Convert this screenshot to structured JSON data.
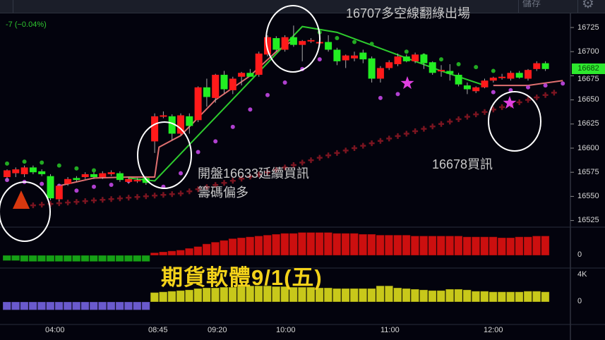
{
  "toolbar": {
    "save_label": "儲存",
    "settings_icon": "gear-icon"
  },
  "header": {
    "change_text": "-7 (−0.04%)"
  },
  "colors": {
    "up": "#ff1a1a",
    "down": "#22ee22",
    "ma": "#e07070",
    "ma_bear": "#2ecc2e",
    "sar_bull": "#b040d0",
    "sar_bear": "#22aa22",
    "cross": "#7a1420",
    "hist_pos": "#cc0f0f",
    "hist_neg": "#16a016",
    "vol_pos": "#c8c81a",
    "vol_neg": "#6a5acd",
    "accent_title": "#f3d21a"
  },
  "price_axis": {
    "ticks": [
      "16725",
      "16700",
      "16675",
      "16650",
      "16625",
      "16600",
      "16575",
      "16550",
      "16525"
    ],
    "last_price": "16682"
  },
  "indicator_axis": {
    "macd_zero": "0",
    "volume_top": "4K",
    "volume_zero": "0"
  },
  "time_axis": [
    "04:00",
    "08:45",
    "09:20",
    "10:00",
    "11:00",
    "12:00"
  ],
  "annotations": {
    "exit_signal": "16707多空線翻綠出場",
    "open_buy_line1": "開盤16633延續買訊",
    "open_buy_line2": "籌碼偏多",
    "buy_signal": "16678買訊",
    "title": "期貨軟體9/1(五)"
  },
  "chart_data": {
    "type": "candlestick",
    "ylim": [
      16520,
      16735
    ],
    "candles": [
      [
        16570,
        16578,
        16566,
        16577
      ],
      [
        16574,
        16580,
        16570,
        16578
      ],
      [
        16573,
        16582,
        16570,
        16580
      ],
      [
        16580,
        16582,
        16573,
        16575
      ],
      [
        16576,
        16578,
        16571,
        16573
      ],
      [
        16571,
        16573,
        16546,
        16548
      ],
      [
        16547,
        16563,
        16545,
        16561
      ],
      [
        16563,
        16570,
        16561,
        16568
      ],
      [
        16569,
        16571,
        16565,
        16567
      ],
      [
        16570,
        16575,
        16568,
        16573
      ],
      [
        16573,
        16575,
        16568,
        16570
      ],
      [
        16570,
        16576,
        16568,
        16574
      ],
      [
        16573,
        16577,
        16571,
        16575
      ],
      [
        16574,
        16576,
        16565,
        16567
      ],
      [
        16565,
        16570,
        16563,
        16568
      ],
      [
        16566,
        16569,
        16564,
        16567
      ],
      [
        16569,
        16571,
        16562,
        16564
      ],
      [
        16607,
        16636,
        16595,
        16633
      ],
      [
        16633,
        16638,
        16631,
        16634
      ],
      [
        16633,
        16635,
        16608,
        16615
      ],
      [
        16615,
        16636,
        16613,
        16634
      ],
      [
        16633,
        16636,
        16615,
        16623
      ],
      [
        16629,
        16664,
        16627,
        16663
      ],
      [
        16663,
        16672,
        16643,
        16653
      ],
      [
        16652,
        16677,
        16647,
        16676
      ],
      [
        16676,
        16680,
        16657,
        16661
      ],
      [
        16660,
        16674,
        16656,
        16672
      ],
      [
        16674,
        16679,
        16665,
        16678
      ],
      [
        16678,
        16682,
        16674,
        16674
      ],
      [
        16676,
        16700,
        16674,
        16698
      ],
      [
        16697,
        16717,
        16695,
        16715
      ],
      [
        16714,
        16716,
        16700,
        16702
      ],
      [
        16702,
        16717,
        16700,
        16715
      ],
      [
        16715,
        16727,
        16705,
        16707
      ],
      [
        16707,
        16712,
        16690,
        16711
      ],
      [
        16711,
        16714,
        16709,
        16712
      ],
      [
        16710,
        16711,
        16708,
        16710
      ],
      [
        16710,
        16717,
        16700,
        16702
      ],
      [
        16702,
        16704,
        16686,
        16690
      ],
      [
        16691,
        16697,
        16683,
        16696
      ],
      [
        16693,
        16700,
        16690,
        16696
      ],
      [
        16699,
        16702,
        16688,
        16692
      ],
      [
        16693,
        16695,
        16668,
        16672
      ],
      [
        16672,
        16685,
        16668,
        16683
      ],
      [
        16683,
        16691,
        16681,
        16689
      ],
      [
        16687,
        16698,
        16685,
        16695
      ],
      [
        16695,
        16697,
        16689,
        16690
      ],
      [
        16690,
        16699,
        16688,
        16697
      ],
      [
        16697,
        16698,
        16682,
        16688
      ],
      [
        16689,
        16690,
        16676,
        16678
      ],
      [
        16681,
        16686,
        16674,
        16681
      ],
      [
        16680,
        16687,
        16670,
        16677
      ],
      [
        16676,
        16678,
        16664,
        16666
      ],
      [
        16665,
        16668,
        16656,
        16661
      ],
      [
        16659,
        16664,
        16657,
        16663
      ],
      [
        16663,
        16672,
        16662,
        16670
      ],
      [
        16670,
        16674,
        16668,
        16673
      ],
      [
        16674,
        16677,
        16671,
        16674
      ],
      [
        16672,
        16680,
        16670,
        16678
      ],
      [
        16678,
        16680,
        16672,
        16673
      ],
      [
        16672,
        16682,
        16670,
        16681
      ],
      [
        16682,
        16690,
        16680,
        16688
      ],
      [
        16688,
        16690,
        16680,
        16682
      ]
    ],
    "ma_line": [
      [
        6,
        16561
      ],
      [
        10,
        16569
      ],
      [
        14,
        16570
      ],
      [
        17,
        16570
      ],
      [
        17.5,
        16601
      ],
      [
        20,
        16613
      ],
      [
        24,
        16650
      ],
      [
        28,
        16675
      ],
      [
        31,
        16700
      ],
      [
        33,
        16712
      ]
    ],
    "ma_bear_line": [
      [
        14,
        16569
      ],
      [
        17,
        16566
      ],
      [
        34,
        16726
      ],
      [
        38,
        16720
      ],
      [
        44,
        16700
      ],
      [
        50,
        16680
      ],
      [
        55,
        16665
      ]
    ],
    "ma_tail": [
      [
        56,
        16665
      ],
      [
        60,
        16665
      ],
      [
        64,
        16670
      ]
    ],
    "sar_bull": [
      [
        0,
        16567
      ],
      [
        2,
        16565
      ],
      [
        4,
        16563
      ],
      [
        6,
        16561
      ],
      [
        8,
        16556
      ],
      [
        10,
        16560
      ],
      [
        12,
        16562
      ],
      [
        14,
        16566
      ],
      [
        16,
        16566
      ],
      [
        18,
        16560
      ],
      [
        20,
        16574
      ],
      [
        22,
        16596
      ],
      [
        24,
        16607
      ],
      [
        26,
        16622
      ],
      [
        28,
        16640
      ],
      [
        30,
        16655
      ],
      [
        32,
        16668
      ],
      [
        34,
        16682
      ],
      [
        36,
        16692
      ],
      [
        43,
        16652
      ],
      [
        45,
        16656
      ],
      [
        56,
        16658
      ],
      [
        58,
        16660
      ],
      [
        60,
        16663
      ],
      [
        62,
        16665
      ],
      [
        64,
        16667
      ]
    ],
    "sar_bear": [
      [
        0,
        16584
      ],
      [
        2,
        16586
      ],
      [
        4,
        16585
      ],
      [
        6,
        16582
      ],
      [
        8,
        16579
      ],
      [
        10,
        16577
      ],
      [
        36,
        16720
      ],
      [
        38,
        16714
      ],
      [
        40,
        16710
      ],
      [
        42,
        16708
      ],
      [
        46,
        16700
      ],
      [
        48,
        16696
      ],
      [
        50,
        16692
      ],
      [
        52,
        16687
      ],
      [
        54,
        16684
      ],
      [
        56,
        16680
      ]
    ],
    "cross_line": [
      [
        2,
        16540
      ],
      [
        20,
        16553
      ],
      [
        30,
        16575
      ],
      [
        40,
        16600
      ],
      [
        50,
        16625
      ],
      [
        56,
        16640
      ],
      [
        64,
        16660
      ]
    ],
    "macd_hist": [
      -6,
      -6,
      -7,
      -7,
      -7,
      -7,
      -7,
      -7,
      -7,
      -7,
      -7,
      -7,
      -7,
      -7,
      -7,
      -7,
      -7,
      3,
      4,
      5,
      6,
      8,
      10,
      13,
      15,
      17,
      19,
      20,
      21,
      22,
      23,
      24,
      25,
      25,
      26,
      26,
      26,
      26,
      25,
      25,
      25,
      24,
      24,
      23,
      23,
      23,
      23,
      22,
      22,
      22,
      22,
      22,
      22,
      21,
      21,
      21,
      21,
      20,
      20,
      21,
      21,
      22,
      22
    ],
    "volume": [
      -1.2,
      -1.2,
      -1.2,
      -1.2,
      -1.2,
      -1.2,
      -1.2,
      -1.2,
      -1.2,
      -1.2,
      -1.2,
      -1.2,
      -1.2,
      -1.2,
      -1.2,
      -1.2,
      -1.2,
      1.4,
      1.5,
      1.6,
      1.7,
      1.8,
      2.0,
      2.1,
      2.1,
      2.2,
      2.2,
      2.3,
      2.4,
      2.4,
      2.4,
      2.3,
      2.3,
      2.2,
      2.2,
      2.2,
      2.1,
      2.1,
      2.0,
      2.0,
      2.0,
      2.0,
      2.0,
      2.4,
      2.4,
      2.1,
      2.0,
      1.9,
      1.8,
      1.7,
      1.7,
      1.9,
      1.9,
      1.8,
      1.6,
      1.6,
      1.5,
      1.5,
      1.5,
      1.5,
      1.6,
      1.6,
      1.5
    ]
  }
}
